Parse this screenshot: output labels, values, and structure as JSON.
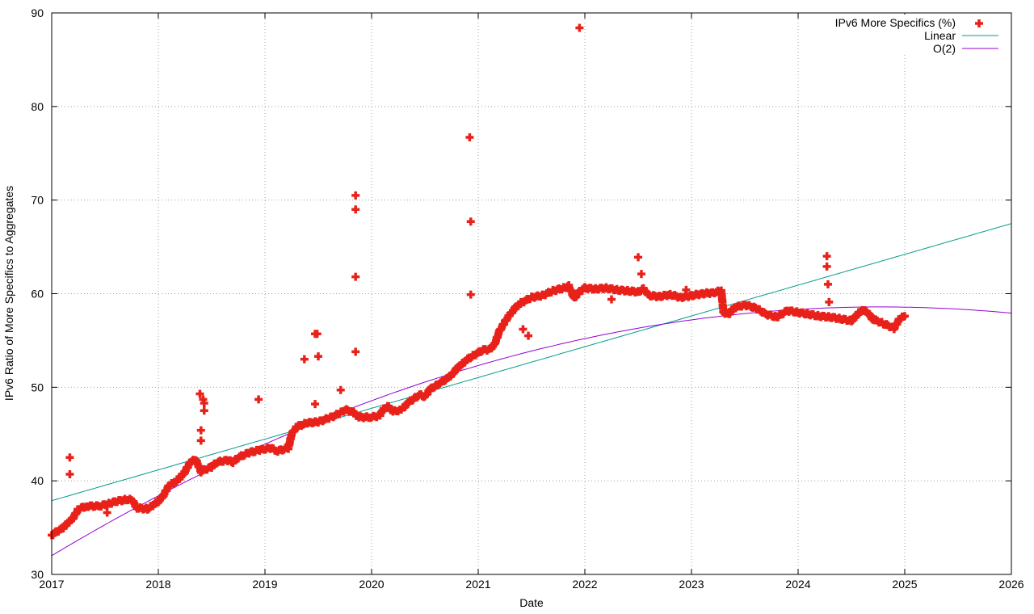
{
  "chart_data": {
    "type": "scatter",
    "xlabel": "Date",
    "ylabel": "IPv6 Ratio of More Specifics to Aggregates",
    "xlim": [
      2017,
      2026
    ],
    "ylim": [
      30,
      90
    ],
    "xticks": [
      "2017",
      "2018",
      "2019",
      "2020",
      "2021",
      "2022",
      "2023",
      "2024",
      "2025",
      "2026"
    ],
    "yticks": [
      "30",
      "40",
      "50",
      "60",
      "70",
      "80",
      "90"
    ],
    "grid": true,
    "legend_position": "top-right",
    "colors": {
      "points": "#e8211a",
      "linear": "#009b8a",
      "quadratic": "#9400d3",
      "grid": "#a0a0a0"
    },
    "series": [
      {
        "name": "IPv6 More Specifics (%)",
        "kind": "points",
        "trend": [
          [
            2017.0,
            34.2
          ],
          [
            2017.05,
            34.6
          ],
          [
            2017.1,
            34.9
          ],
          [
            2017.15,
            35.5
          ],
          [
            2017.2,
            36.0
          ],
          [
            2017.25,
            37.0
          ],
          [
            2017.33,
            37.3
          ],
          [
            2017.45,
            37.3
          ],
          [
            2017.55,
            37.6
          ],
          [
            2017.6,
            37.8
          ],
          [
            2017.7,
            38.0
          ],
          [
            2017.75,
            38.0
          ],
          [
            2017.8,
            37.1
          ],
          [
            2017.9,
            37.0
          ],
          [
            2018.0,
            37.8
          ],
          [
            2018.05,
            38.5
          ],
          [
            2018.1,
            39.5
          ],
          [
            2018.15,
            39.8
          ],
          [
            2018.2,
            40.3
          ],
          [
            2018.25,
            41.0
          ],
          [
            2018.3,
            42.0
          ],
          [
            2018.35,
            42.3
          ],
          [
            2018.4,
            41.0
          ],
          [
            2018.5,
            41.5
          ],
          [
            2018.55,
            42.0
          ],
          [
            2018.65,
            42.2
          ],
          [
            2018.7,
            42.0
          ],
          [
            2018.75,
            42.5
          ],
          [
            2018.85,
            43.0
          ],
          [
            2018.95,
            43.3
          ],
          [
            2019.05,
            43.5
          ],
          [
            2019.12,
            43.2
          ],
          [
            2019.22,
            43.5
          ],
          [
            2019.25,
            45.0
          ],
          [
            2019.3,
            45.8
          ],
          [
            2019.4,
            46.2
          ],
          [
            2019.5,
            46.3
          ],
          [
            2019.6,
            46.7
          ],
          [
            2019.7,
            47.2
          ],
          [
            2019.75,
            47.6
          ],
          [
            2019.82,
            47.4
          ],
          [
            2019.88,
            46.8
          ],
          [
            2020.0,
            46.8
          ],
          [
            2020.08,
            47.0
          ],
          [
            2020.1,
            47.5
          ],
          [
            2020.15,
            48.0
          ],
          [
            2020.2,
            47.4
          ],
          [
            2020.28,
            47.6
          ],
          [
            2020.35,
            48.4
          ],
          [
            2020.45,
            49.2
          ],
          [
            2020.5,
            49.0
          ],
          [
            2020.55,
            49.8
          ],
          [
            2020.65,
            50.5
          ],
          [
            2020.72,
            51.0
          ],
          [
            2020.75,
            51.3
          ],
          [
            2020.8,
            52.0
          ],
          [
            2020.9,
            53.0
          ],
          [
            2021.0,
            53.7
          ],
          [
            2021.05,
            54.0
          ],
          [
            2021.1,
            54.0
          ],
          [
            2021.15,
            54.5
          ],
          [
            2021.2,
            56.0
          ],
          [
            2021.25,
            57.0
          ],
          [
            2021.3,
            57.8
          ],
          [
            2021.35,
            58.5
          ],
          [
            2021.4,
            59.0
          ],
          [
            2021.5,
            59.6
          ],
          [
            2021.6,
            59.8
          ],
          [
            2021.7,
            60.3
          ],
          [
            2021.8,
            60.6
          ],
          [
            2021.85,
            60.8
          ],
          [
            2021.9,
            59.5
          ],
          [
            2021.95,
            60.2
          ],
          [
            2022.0,
            60.6
          ],
          [
            2022.1,
            60.5
          ],
          [
            2022.2,
            60.6
          ],
          [
            2022.3,
            60.4
          ],
          [
            2022.4,
            60.3
          ],
          [
            2022.5,
            60.2
          ],
          [
            2022.55,
            60.5
          ],
          [
            2022.6,
            59.8
          ],
          [
            2022.7,
            59.7
          ],
          [
            2022.8,
            59.9
          ],
          [
            2022.9,
            59.6
          ],
          [
            2023.0,
            59.8
          ],
          [
            2023.1,
            60.0
          ],
          [
            2023.2,
            60.1
          ],
          [
            2023.28,
            60.3
          ],
          [
            2023.3,
            58.0
          ],
          [
            2023.35,
            57.8
          ],
          [
            2023.4,
            58.5
          ],
          [
            2023.5,
            58.8
          ],
          [
            2023.6,
            58.5
          ],
          [
            2023.7,
            57.8
          ],
          [
            2023.8,
            57.5
          ],
          [
            2023.9,
            58.2
          ],
          [
            2024.0,
            58.0
          ],
          [
            2024.1,
            57.8
          ],
          [
            2024.2,
            57.6
          ],
          [
            2024.3,
            57.5
          ],
          [
            2024.4,
            57.3
          ],
          [
            2024.5,
            57.1
          ],
          [
            2024.6,
            58.3
          ],
          [
            2024.65,
            58.0
          ],
          [
            2024.7,
            57.3
          ],
          [
            2024.8,
            56.8
          ],
          [
            2024.9,
            56.3
          ],
          [
            2024.95,
            57.3
          ],
          [
            2025.0,
            57.6
          ]
        ],
        "outliers": [
          [
            2017.17,
            42.5
          ],
          [
            2017.17,
            40.7
          ],
          [
            2017.52,
            36.6
          ],
          [
            2018.39,
            49.3
          ],
          [
            2018.4,
            45.4
          ],
          [
            2018.4,
            44.3
          ],
          [
            2018.42,
            48.7
          ],
          [
            2018.43,
            48.3
          ],
          [
            2018.43,
            47.5
          ],
          [
            2018.94,
            48.7
          ],
          [
            2019.37,
            53.0
          ],
          [
            2019.47,
            48.2
          ],
          [
            2019.47,
            55.7
          ],
          [
            2019.49,
            55.7
          ],
          [
            2019.5,
            53.3
          ],
          [
            2019.71,
            49.7
          ],
          [
            2019.85,
            70.5
          ],
          [
            2019.85,
            69.0
          ],
          [
            2019.85,
            61.8
          ],
          [
            2019.85,
            53.8
          ],
          [
            2020.92,
            76.7
          ],
          [
            2020.93,
            67.7
          ],
          [
            2020.93,
            59.9
          ],
          [
            2021.42,
            56.2
          ],
          [
            2021.47,
            55.5
          ],
          [
            2021.95,
            88.4
          ],
          [
            2022.25,
            59.4
          ],
          [
            2022.5,
            63.9
          ],
          [
            2022.53,
            62.1
          ],
          [
            2022.95,
            60.4
          ],
          [
            2024.27,
            64.0
          ],
          [
            2024.27,
            62.9
          ],
          [
            2024.28,
            61.0
          ],
          [
            2024.29,
            59.1
          ]
        ]
      },
      {
        "name": "Linear",
        "kind": "line",
        "fn": "linear",
        "coef": [
          37.88,
          3.29
        ]
      },
      {
        "name": "O(2)",
        "kind": "line",
        "fn": "quadratic",
        "coef": [
          32.0,
          6.84,
          -0.44
        ]
      }
    ]
  }
}
